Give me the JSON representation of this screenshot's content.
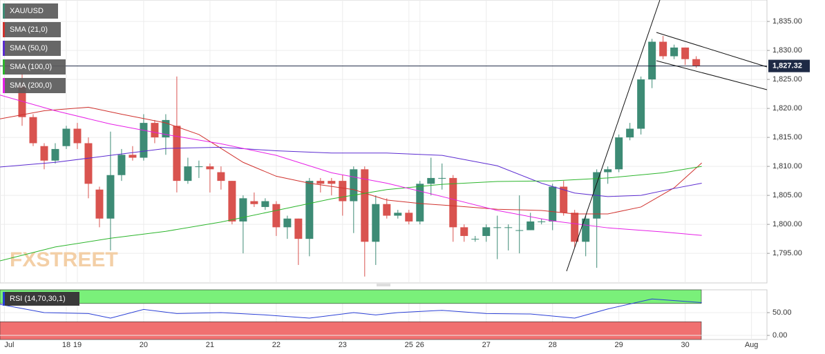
{
  "chart_data": [
    {
      "type": "candlestick",
      "name": "XAU/USD",
      "up_color": "#3d8b75",
      "down_color": "#d9534f",
      "xlim": [
        -2,
        67.4
      ],
      "ylim": [
        1789.9,
        1838.7
      ],
      "grid": true,
      "xticks": [
        {
          "value": -1.6,
          "label": "Jul"
        },
        {
          "value": 4,
          "label": "18"
        },
        {
          "value": 5,
          "label": "19"
        },
        {
          "value": 11,
          "label": "20"
        },
        {
          "value": 17,
          "label": "21"
        },
        {
          "value": 23,
          "label": "22"
        },
        {
          "value": 29,
          "label": "23"
        },
        {
          "value": 35,
          "label": "25"
        },
        {
          "value": 36,
          "label": "26"
        },
        {
          "value": 42,
          "label": "27"
        },
        {
          "value": 48,
          "label": "28"
        },
        {
          "value": 54,
          "label": "29"
        },
        {
          "value": 60,
          "label": "30"
        },
        {
          "value": 66,
          "label": "Aug"
        }
      ],
      "yticks": [
        {
          "value": 1795,
          "label": "1,795.00"
        },
        {
          "value": 1800,
          "label": "1,800.00"
        },
        {
          "value": 1805,
          "label": "1,805.00"
        },
        {
          "value": 1810,
          "label": "1,810.00"
        },
        {
          "value": 1815,
          "label": "1,815.00"
        },
        {
          "value": 1820,
          "label": "1,820.00"
        },
        {
          "value": 1825,
          "label": "1,825.00"
        },
        {
          "value": 1830,
          "label": "1,830.00"
        },
        {
          "value": 1835,
          "label": "1,835.00"
        }
      ],
      "last_price": {
        "value": 1827.32,
        "label": "1,827.32"
      },
      "watermark": "FXSTREET",
      "x": [
        0,
        1,
        2,
        3,
        4,
        5,
        6,
        7,
        8,
        9,
        10,
        11,
        12,
        13,
        14,
        15,
        16,
        17,
        18,
        19,
        20,
        21,
        22,
        23,
        24,
        25,
        26,
        27,
        28,
        29,
        30,
        31,
        32,
        33,
        34,
        35,
        36,
        37,
        38,
        39,
        40,
        41,
        42,
        43,
        44,
        45,
        46,
        47,
        48,
        49,
        50,
        51,
        52,
        53,
        54,
        55,
        56,
        57,
        58,
        59,
        60,
        61
      ],
      "open": [
        1824,
        1818.5,
        1813.5,
        1811,
        1813.5,
        1816.5,
        1814,
        1806,
        1801,
        1808.5,
        1812,
        1811.5,
        1817.5,
        1815,
        1817,
        1807.5,
        1810,
        1810,
        1809,
        1807.5,
        1800.5,
        1804,
        1803,
        1803.5,
        1799.5,
        1801,
        1797.5,
        1807.5,
        1807.5,
        1807.5,
        1804,
        1809.5,
        1797,
        1803.5,
        1801.5,
        1802,
        1800.5,
        1807,
        1808,
        1808,
        1799.5,
        1797.5,
        1798,
        1799.5,
        1799.5,
        1799,
        1799,
        1800.5,
        1800.5,
        1806.5,
        1802,
        1797,
        1801,
        1809,
        1809.5,
        1815,
        1816.5,
        1825,
        1831.5,
        1829,
        1830.5,
        1828.5
      ],
      "high": [
        1826,
        1819,
        1814,
        1814,
        1817,
        1817.5,
        1815,
        1806.5,
        1816,
        1813,
        1813.5,
        1819,
        1818,
        1819,
        1825.5,
        1811.5,
        1811,
        1810.5,
        1810,
        1807.5,
        1805,
        1805.5,
        1804.5,
        1804,
        1801.5,
        1801,
        1808,
        1808,
        1808,
        1808.5,
        1810,
        1810,
        1805,
        1804.5,
        1802.5,
        1802.5,
        1807.5,
        1811.5,
        1810.5,
        1808.5,
        1800,
        1798,
        1800,
        1801.5,
        1800,
        1805,
        1802,
        1801,
        1807,
        1807.5,
        1802.5,
        1801.5,
        1809.5,
        1810,
        1815.5,
        1817.5,
        1825.5,
        1832,
        1832.5,
        1831,
        1830.5,
        1829
      ],
      "low": [
        1817,
        1813.5,
        1809.5,
        1810.5,
        1813,
        1813,
        1804.5,
        1799.5,
        1795.5,
        1807.5,
        1811,
        1811,
        1814,
        1812,
        1805.5,
        1807,
        1808,
        1805.5,
        1806,
        1800,
        1795,
        1803,
        1802.5,
        1798,
        1797.5,
        1793,
        1794.5,
        1805.5,
        1805,
        1801.5,
        1798.5,
        1791,
        1793,
        1801,
        1801,
        1800,
        1800,
        1805,
        1806,
        1797,
        1797,
        1797,
        1797,
        1794,
        1795.5,
        1795,
        1799,
        1800,
        1799,
        1801.5,
        1796,
        1794.5,
        1792.5,
        1807,
        1809,
        1814.5,
        1815.5,
        1823.5,
        1828.5,
        1828.5,
        1827.5,
        1827
      ],
      "close": [
        1818.5,
        1814,
        1811,
        1813,
        1816.5,
        1814,
        1807,
        1801,
        1808.5,
        1812,
        1811.5,
        1817.5,
        1815,
        1818,
        1807.5,
        1810,
        1810,
        1809.5,
        1807.5,
        1800.5,
        1804.5,
        1803.5,
        1804,
        1799.5,
        1801,
        1797.5,
        1807.5,
        1807,
        1807,
        1804,
        1809.5,
        1797,
        1803.5,
        1801.5,
        1802,
        1800.5,
        1807,
        1808,
        1808,
        1799.5,
        1798,
        1797.5,
        1799.5,
        1799.5,
        1799.5,
        1799,
        1800.5,
        1800.5,
        1806.5,
        1802,
        1797,
        1801,
        1809,
        1809.5,
        1815,
        1816.5,
        1825,
        1831.5,
        1829,
        1830.5,
        1828.5,
        1827.3
      ],
      "series": [
        {
          "name": "SMA (21,0)",
          "color": "#d0312d",
          "x": [
            -2,
            2,
            6,
            9,
            13,
            16,
            18,
            20,
            23,
            26,
            30,
            33,
            36,
            39,
            43,
            47,
            50,
            53,
            56,
            59,
            61.5
          ],
          "values": [
            1818.2,
            1819.6,
            1820.2,
            1819,
            1817.5,
            1815.5,
            1813.1,
            1810.7,
            1808.3,
            1807.1,
            1806,
            1804.2,
            1803.6,
            1803.2,
            1802.6,
            1802.4,
            1801.8,
            1801.8,
            1803,
            1806.3,
            1810.6
          ]
        },
        {
          "name": "SMA (50,0)",
          "color": "#5b2bd1",
          "x": [
            -2,
            3,
            8,
            13,
            18,
            23,
            28,
            33,
            38,
            43,
            47,
            50,
            53,
            56,
            59,
            61.5
          ],
          "values": [
            1809.9,
            1810.7,
            1811.9,
            1813.1,
            1813.3,
            1812.7,
            1812.3,
            1812.3,
            1811.9,
            1810.1,
            1807.1,
            1805.4,
            1804.8,
            1805,
            1806.2,
            1807.1
          ]
        },
        {
          "name": "SMA (100,0)",
          "color": "#2bb52b",
          "x": [
            -2,
            3,
            8,
            13,
            18,
            23,
            28,
            33,
            38,
            43,
            48,
            53,
            58,
            61.5
          ],
          "values": [
            1793.7,
            1796.1,
            1797.6,
            1798.8,
            1800.4,
            1802.4,
            1804.4,
            1806,
            1806.9,
            1807.4,
            1807.5,
            1808,
            1808.9,
            1810
          ]
        },
        {
          "name": "SMA (200,0)",
          "color": "#e61ee6",
          "x": [
            -2,
            3,
            8,
            13,
            18,
            23,
            28,
            33,
            38,
            43,
            48,
            53,
            58,
            61.5
          ],
          "values": [
            1822.3,
            1819.6,
            1817.3,
            1815.5,
            1813.9,
            1811.9,
            1808.9,
            1807.1,
            1804.8,
            1802.4,
            1800.6,
            1799.4,
            1798.7,
            1798.1
          ]
        }
      ]
    },
    {
      "type": "line",
      "xlim": [
        -2,
        67.4
      ],
      "ylim": [
        -9,
        100
      ],
      "levels": [
        30,
        70
      ],
      "yticks": [
        {
          "value": 0,
          "label": "0.00"
        },
        {
          "value": 50,
          "label": "50.00"
        }
      ],
      "series": [
        {
          "name": "RSI (14,70,30,1)",
          "color": "#2a3fd6",
          "x": [
            -2,
            2,
            6,
            8,
            11,
            14,
            18,
            22,
            26,
            30,
            32,
            34,
            38,
            42,
            46,
            50,
            53,
            57,
            61.5
          ],
          "values": [
            68,
            50,
            48,
            38,
            57,
            48,
            50,
            45,
            38,
            50,
            45,
            50,
            55,
            48,
            47,
            38,
            58,
            80,
            72
          ]
        }
      ]
    }
  ]
}
